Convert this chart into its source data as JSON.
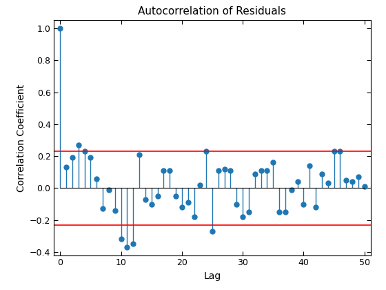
{
  "title": "Autocorrelation of Residuals",
  "xlabel": "Lag",
  "ylabel": "Correlation Coefficient",
  "confidence_bound": 0.23,
  "stem_color": "#1f77b4",
  "confidence_color": "red",
  "lags": [
    0,
    1,
    2,
    3,
    4,
    5,
    6,
    7,
    8,
    9,
    10,
    11,
    12,
    13,
    14,
    15,
    16,
    17,
    18,
    19,
    20,
    21,
    22,
    23,
    24,
    25,
    26,
    27,
    28,
    29,
    30,
    31,
    32,
    33,
    34,
    35,
    36,
    37,
    38,
    39,
    40,
    41,
    42,
    43,
    44,
    45,
    46,
    47,
    48,
    49,
    50
  ],
  "values": [
    1.0,
    0.13,
    0.19,
    0.27,
    0.23,
    0.19,
    0.06,
    -0.13,
    -0.01,
    -0.14,
    -0.32,
    -0.37,
    -0.35,
    0.21,
    -0.07,
    -0.1,
    -0.05,
    0.11,
    0.11,
    -0.05,
    -0.12,
    -0.09,
    -0.18,
    0.02,
    0.23,
    -0.27,
    0.11,
    0.12,
    0.11,
    -0.1,
    -0.18,
    -0.15,
    0.09,
    0.11,
    0.11,
    0.16,
    -0.15,
    -0.15,
    -0.01,
    0.04,
    -0.1,
    0.14,
    -0.12,
    0.09,
    0.03,
    0.23,
    0.23,
    0.05,
    0.04,
    0.07,
    0.01
  ],
  "ylim": [
    -0.42,
    1.05
  ],
  "xlim": [
    -1,
    51
  ],
  "yticks": [
    -0.4,
    -0.2,
    0.0,
    0.2,
    0.4,
    0.6,
    0.8,
    1.0
  ],
  "xticks": [
    0,
    10,
    20,
    30,
    40,
    50
  ],
  "figsize": [
    5.6,
    4.2
  ],
  "dpi": 100,
  "title_fontsize": 11,
  "label_fontsize": 10,
  "tick_fontsize": 9,
  "marker_size": 5,
  "stem_linewidth": 1.0,
  "confidence_linewidth": 1.2,
  "background_color": "#ffffff"
}
